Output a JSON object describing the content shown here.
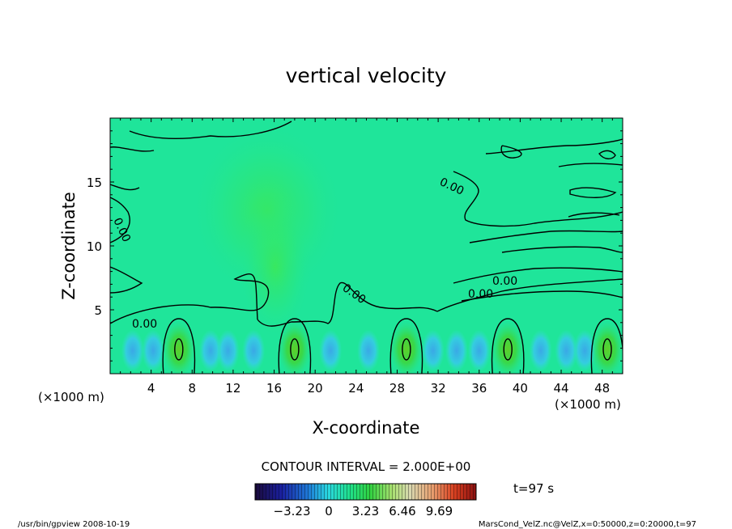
{
  "chart_data": {
    "type": "heatmap",
    "title": "vertical velocity",
    "xlabel": "X-coordinate",
    "ylabel": "Z-coordinate",
    "x_units": "(×1000 m)",
    "y_units": "(×1000 m)",
    "xlim": [
      0,
      50
    ],
    "ylim": [
      0,
      20
    ],
    "x_ticks": [
      4,
      8,
      12,
      16,
      20,
      24,
      28,
      32,
      36,
      40,
      44,
      48
    ],
    "y_ticks": [
      5,
      10,
      15
    ],
    "contour_labels": [
      "0.00",
      "0.00",
      "0.00",
      "0.00",
      "0.00",
      "0.00"
    ],
    "updraft_cores_x": [
      6.7,
      18,
      28.9,
      38.8,
      48.5
    ],
    "contour_interval": "CONTOUR INTERVAL = 2.000E+00",
    "colorbar_ticks": [
      "−3.23",
      "0",
      "3.23",
      "6.46",
      "9.69"
    ],
    "colorbar_range": [
      -6.46,
      12.92
    ],
    "time_label": "t=97 s"
  },
  "footer": {
    "left": "/usr/bin/gpview   2008-10-19",
    "right": "MarsCond_VelZ.nc@VelZ,x=0:50000,z=0:20000,t=97"
  },
  "colors": {
    "background_field": "#1fe59a",
    "contour": "#000000"
  }
}
